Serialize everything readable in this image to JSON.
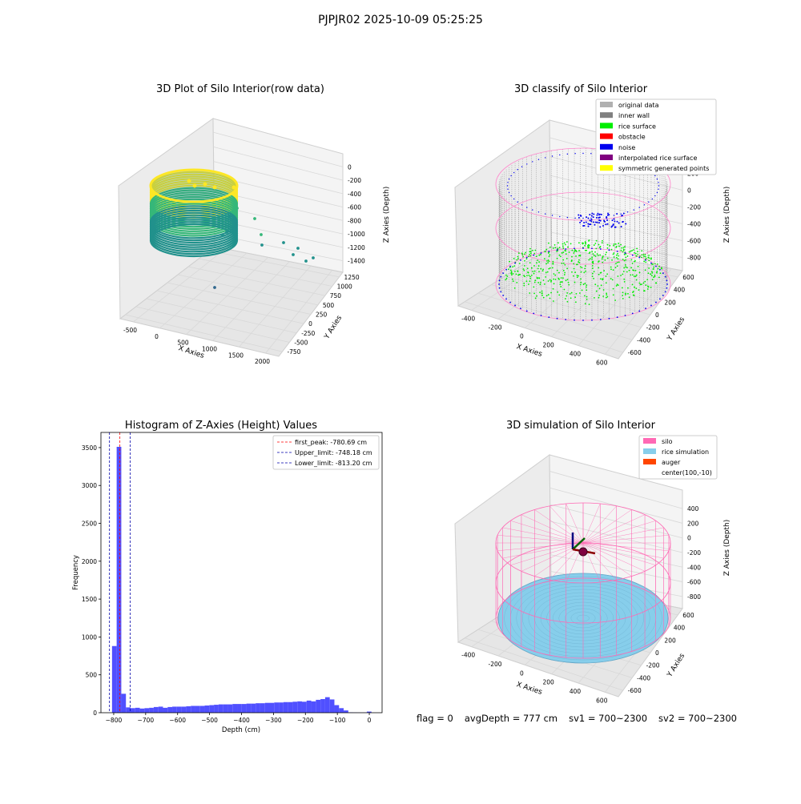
{
  "suptitle": "PJPJR02 2025-10-09 05:25:25",
  "status": {
    "flag": "flag = 0",
    "avg_depth": "avgDepth = 777 cm",
    "sv1": "sv1 = 700~2300",
    "sv2": "sv2 = 700~2300"
  },
  "chart_data": [
    {
      "type": "scatter",
      "title": "3D Plot of Silo Interior(row data)",
      "xlabel": "X Axies",
      "ylabel": "Y Axies",
      "zlabel": "Z Axies (Depth)",
      "x_ticks": [
        "-500",
        "0",
        "500",
        "1000",
        "1500",
        "2000"
      ],
      "y_ticks": [
        "-750",
        "-500",
        "-250",
        "0",
        "250",
        "500",
        "750",
        "1000",
        "1250"
      ],
      "z_ticks": [
        "0",
        "-200",
        "-400",
        "-600",
        "-800",
        "-1000",
        "-1200",
        "-1400"
      ],
      "grid": true,
      "colormap": [
        "#440154",
        "#31688e",
        "#21918c",
        "#35b779",
        "#fde725"
      ]
    },
    {
      "type": "scatter",
      "title": "3D classify of Silo Interior",
      "xlabel": "X Axies",
      "ylabel": "Y Axies",
      "zlabel": "Z Axies (Depth)",
      "x_ticks": [
        "-400",
        "-200",
        "0",
        "200",
        "400",
        "600"
      ],
      "y_ticks": [
        "-600",
        "-400",
        "-200",
        "0",
        "200",
        "400",
        "600"
      ],
      "z_ticks": [
        "200",
        "0",
        "-200",
        "-400",
        "-600",
        "-800"
      ],
      "legend_position": "top-right",
      "grid": true,
      "legend": [
        {
          "label": "original data",
          "color": "#b0b0b0"
        },
        {
          "label": "inner wall",
          "color": "#808080"
        },
        {
          "label": "rice surface",
          "color": "#00ee00"
        },
        {
          "label": "obstacle",
          "color": "#ff0000"
        },
        {
          "label": "noise",
          "color": "#0000ee"
        },
        {
          "label": "interpolated rice surface",
          "color": "#800080"
        },
        {
          "label": "symmetric generated points",
          "color": "#ffff00"
        }
      ]
    },
    {
      "type": "bar",
      "title": "Histogram of Z-Axies (Height) Values",
      "xlabel": "Depth (cm)",
      "ylabel": "Frequency",
      "xlim": [
        -840,
        40
      ],
      "ylim": [
        0,
        3700
      ],
      "x_ticks": [
        -800,
        -700,
        -600,
        -500,
        -400,
        -300,
        -200,
        -100,
        0
      ],
      "y_ticks": [
        0,
        500,
        1000,
        1500,
        2000,
        2500,
        3000,
        3500
      ],
      "bar_color": "#5050ff",
      "bin_width": 14.5,
      "bins": [
        {
          "x": -798,
          "y": 880
        },
        {
          "x": -783.5,
          "y": 3510
        },
        {
          "x": -769,
          "y": 250
        },
        {
          "x": -754.5,
          "y": 70
        },
        {
          "x": -740,
          "y": 60
        },
        {
          "x": -725.5,
          "y": 65
        },
        {
          "x": -711,
          "y": 55
        },
        {
          "x": -696.5,
          "y": 60
        },
        {
          "x": -682,
          "y": 65
        },
        {
          "x": -667.5,
          "y": 75
        },
        {
          "x": -653,
          "y": 80
        },
        {
          "x": -638.5,
          "y": 65
        },
        {
          "x": -624,
          "y": 75
        },
        {
          "x": -609.5,
          "y": 80
        },
        {
          "x": -595,
          "y": 80
        },
        {
          "x": -580.5,
          "y": 80
        },
        {
          "x": -566,
          "y": 85
        },
        {
          "x": -551.5,
          "y": 90
        },
        {
          "x": -537,
          "y": 90
        },
        {
          "x": -522.5,
          "y": 90
        },
        {
          "x": -508,
          "y": 95
        },
        {
          "x": -493.5,
          "y": 100
        },
        {
          "x": -479,
          "y": 105
        },
        {
          "x": -464.5,
          "y": 110
        },
        {
          "x": -450,
          "y": 110
        },
        {
          "x": -435.5,
          "y": 110
        },
        {
          "x": -421,
          "y": 115
        },
        {
          "x": -406.5,
          "y": 115
        },
        {
          "x": -392,
          "y": 115
        },
        {
          "x": -377.5,
          "y": 120
        },
        {
          "x": -363,
          "y": 120
        },
        {
          "x": -348.5,
          "y": 125
        },
        {
          "x": -334,
          "y": 125
        },
        {
          "x": -319.5,
          "y": 130
        },
        {
          "x": -305,
          "y": 130
        },
        {
          "x": -290.5,
          "y": 135
        },
        {
          "x": -276,
          "y": 135
        },
        {
          "x": -261.5,
          "y": 140
        },
        {
          "x": -247,
          "y": 140
        },
        {
          "x": -232.5,
          "y": 145
        },
        {
          "x": -218,
          "y": 150
        },
        {
          "x": -203.5,
          "y": 145
        },
        {
          "x": -189,
          "y": 160
        },
        {
          "x": -174.5,
          "y": 150
        },
        {
          "x": -160,
          "y": 170
        },
        {
          "x": -145.5,
          "y": 180
        },
        {
          "x": -131,
          "y": 205
        },
        {
          "x": -116.5,
          "y": 175
        },
        {
          "x": -102,
          "y": 100
        },
        {
          "x": -87.5,
          "y": 60
        },
        {
          "x": -73,
          "y": 30
        },
        {
          "x": -58.5,
          "y": 5
        },
        {
          "x": -44,
          "y": 3
        },
        {
          "x": -29.5,
          "y": 2
        },
        {
          "x": -15,
          "y": 2
        },
        {
          "x": -0.5,
          "y": 15
        }
      ],
      "vlines": [
        {
          "label": "first_peak: -780.69 cm",
          "x": -780.69,
          "color": "#ff0000"
        },
        {
          "label": "Upper_limit: -748.18 cm",
          "x": -748.18,
          "color": "#0000aa"
        },
        {
          "label": "Lower_limit: -813.20 cm",
          "x": -813.2,
          "color": "#0000aa"
        }
      ],
      "legend_position": "top-right"
    },
    {
      "type": "scatter",
      "title": "3D simulation of Silo Interior",
      "xlabel": "X Axies",
      "ylabel": "Y Axies",
      "zlabel": "Z Axies (Depth)",
      "x_ticks": [
        "-400",
        "-200",
        "0",
        "200",
        "400",
        "600"
      ],
      "y_ticks": [
        "-600",
        "-400",
        "-200",
        "0",
        "200",
        "400",
        "600"
      ],
      "z_ticks": [
        "400",
        "200",
        "0",
        "-200",
        "-400",
        "-600",
        "-800"
      ],
      "legend_position": "top-right",
      "grid": true,
      "legend": [
        {
          "label": "silo",
          "color": "#ff69b4"
        },
        {
          "label": "rice simulation",
          "color": "#87ceeb"
        },
        {
          "label": "auger",
          "color": "#ff4500"
        },
        {
          "label": "center(100,-10)",
          "color": ""
        }
      ]
    }
  ]
}
